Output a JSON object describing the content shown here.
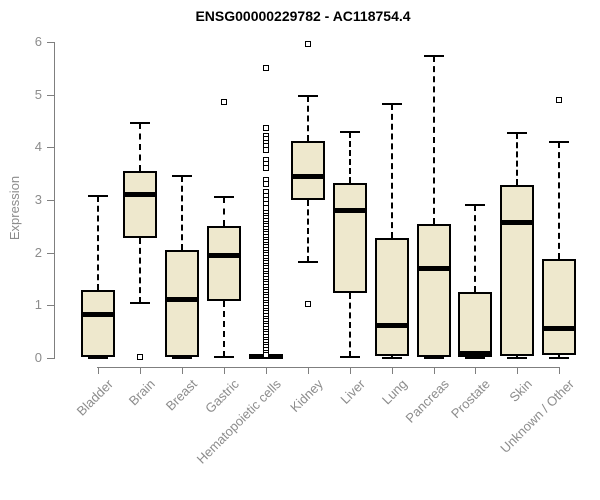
{
  "chart_data": {
    "type": "box",
    "title": "ENSG00000229782 - AC118754.4",
    "ylabel": "Expression",
    "xlabel": "",
    "ylim": [
      0,
      6
    ],
    "yticks": [
      0,
      1,
      2,
      3,
      4,
      5,
      6
    ],
    "grid": false,
    "legend": "none",
    "colors": {
      "box_fill": "#EEE8CD",
      "box_border": "#000000",
      "axis_line": "#7f7f7f",
      "axis_text": "#8c8c8c",
      "title_text": "#000000",
      "background": "#ffffff"
    },
    "categories": [
      "Bladder",
      "Brain",
      "Breast",
      "Gastric",
      "Hematopoietic cells",
      "Kidney",
      "Liver",
      "Lung",
      "Pancreas",
      "Prostate",
      "Skin",
      "Unknown / Other"
    ],
    "series": [
      {
        "category": "Bladder",
        "whisker_low": 0,
        "q1": 0.02,
        "median": 0.83,
        "q3": 1.3,
        "whisker_high": 3.08,
        "outliers": []
      },
      {
        "category": "Brain",
        "whisker_low": 1.05,
        "q1": 2.28,
        "median": 3.1,
        "q3": 3.55,
        "whisker_high": 4.47,
        "outliers": [
          0.02
        ]
      },
      {
        "category": "Breast",
        "whisker_low": 0,
        "q1": 0.02,
        "median": 1.12,
        "q3": 2.05,
        "whisker_high": 3.45,
        "outliers": []
      },
      {
        "category": "Gastric",
        "whisker_low": 0.02,
        "q1": 1.08,
        "median": 1.95,
        "q3": 2.5,
        "whisker_high": 3.06,
        "outliers": [
          4.87
        ]
      },
      {
        "category": "Hematopoietic cells",
        "whisker_low": 0,
        "q1": 0,
        "median": 0.02,
        "q3": 0.08,
        "whisker_high": 0.08,
        "outliers": [
          5.5,
          4.37,
          4.22,
          4.15,
          4.08,
          4.02,
          3.95,
          3.76,
          3.68,
          3.6,
          3.38,
          3.3,
          3.15,
          3.07,
          3.0,
          2.92,
          2.85,
          2.75,
          2.7,
          2.65,
          2.6,
          2.55,
          2.5,
          2.45,
          2.4,
          2.35,
          2.3,
          2.25,
          2.2,
          2.15,
          2.1,
          2.05,
          2.0,
          1.95,
          1.9,
          1.85,
          1.8,
          1.75,
          1.7,
          1.65,
          1.6,
          1.55,
          1.5,
          1.45,
          1.4,
          1.35,
          1.3,
          1.25,
          1.2,
          1.15,
          1.1,
          1.05,
          1.0,
          0.95,
          0.9,
          0.85,
          0.8,
          0.75,
          0.7,
          0.65,
          0.6,
          0.55,
          0.5,
          0.45,
          0.4,
          0.35,
          0.3,
          0.25,
          0.2,
          0.15,
          0.1,
          0.05
        ]
      },
      {
        "category": "Kidney",
        "whisker_low": 1.82,
        "q1": 3.0,
        "median": 3.45,
        "q3": 4.12,
        "whisker_high": 4.97,
        "outliers": [
          5.97,
          1.03
        ]
      },
      {
        "category": "Liver",
        "whisker_low": 0.02,
        "q1": 1.23,
        "median": 2.8,
        "q3": 3.33,
        "whisker_high": 4.3,
        "outliers": []
      },
      {
        "category": "Lung",
        "whisker_low": 0,
        "q1": 0.03,
        "median": 0.62,
        "q3": 2.28,
        "whisker_high": 4.83,
        "outliers": []
      },
      {
        "category": "Pancreas",
        "whisker_low": 0,
        "q1": 0.02,
        "median": 1.7,
        "q3": 2.55,
        "whisker_high": 5.73,
        "outliers": []
      },
      {
        "category": "Prostate",
        "whisker_low": 0,
        "q1": 0.02,
        "median": 0.08,
        "q3": 1.25,
        "whisker_high": 2.9,
        "outliers": []
      },
      {
        "category": "Skin",
        "whisker_low": 0,
        "q1": 0.04,
        "median": 2.57,
        "q3": 3.28,
        "whisker_high": 4.27,
        "outliers": []
      },
      {
        "category": "Unknown / Other",
        "whisker_low": 0,
        "q1": 0.05,
        "median": 0.56,
        "q3": 1.88,
        "whisker_high": 4.1,
        "outliers": [
          4.9
        ]
      }
    ]
  }
}
